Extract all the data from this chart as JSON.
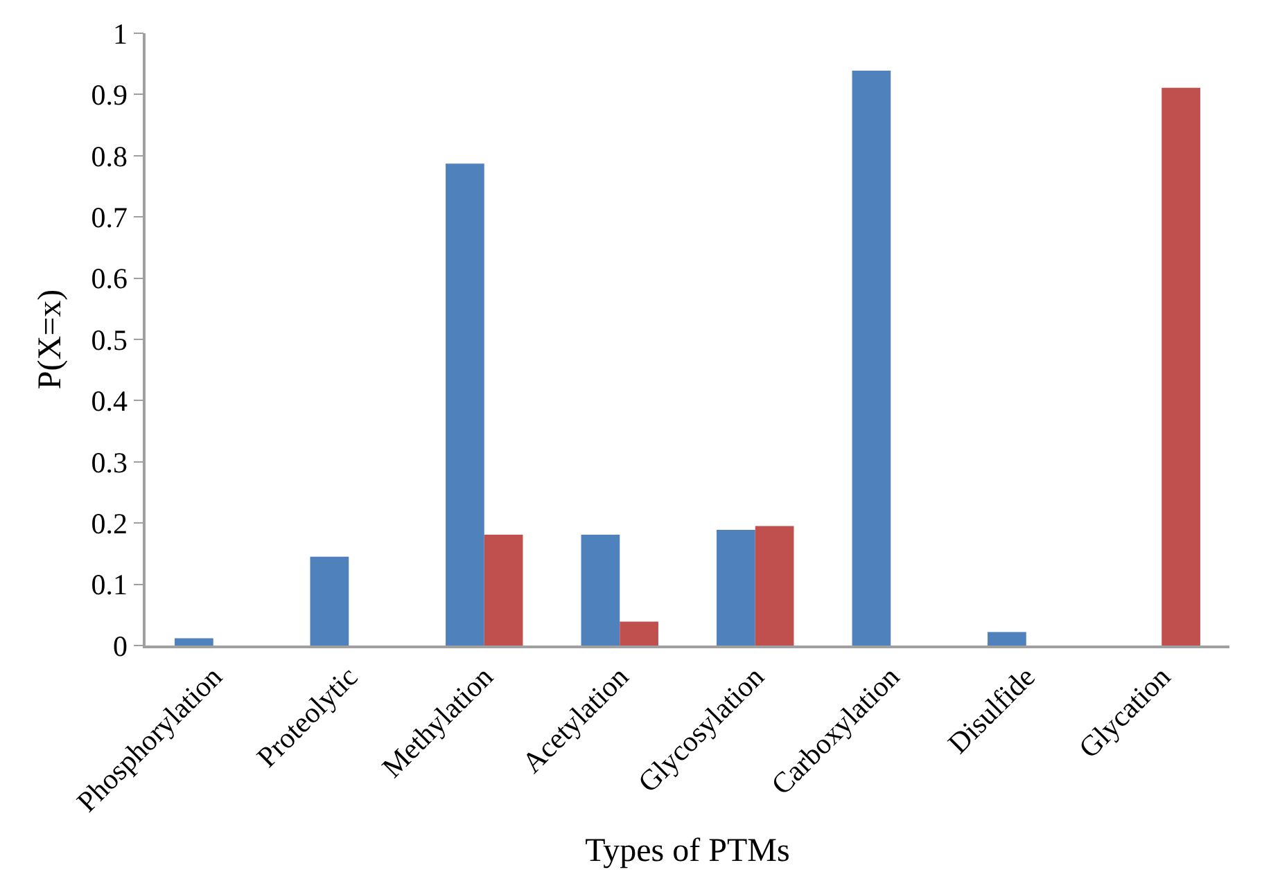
{
  "chart_data": {
    "type": "bar",
    "xlabel": "Types of PTMs",
    "ylabel": "P(X=x)",
    "categories": [
      "Phosphorylation",
      "Proteolytic",
      "Methylation",
      "Acetylation",
      "Glycosylation",
      "Carboxylation",
      "Disulfide",
      "Glycation"
    ],
    "series": [
      {
        "color": "#4f81bd",
        "values": [
          0.012,
          0.145,
          0.787,
          0.181,
          0.189,
          0.939,
          0.022,
          null
        ]
      },
      {
        "color": "#c0504d",
        "values": [
          null,
          null,
          0.181,
          0.039,
          0.195,
          null,
          null,
          0.911
        ]
      }
    ],
    "ylim": [
      0,
      1
    ],
    "yticks": [
      0,
      0.1,
      0.2,
      0.3,
      0.4,
      0.5,
      0.6,
      0.7,
      0.8,
      0.9,
      1
    ]
  }
}
